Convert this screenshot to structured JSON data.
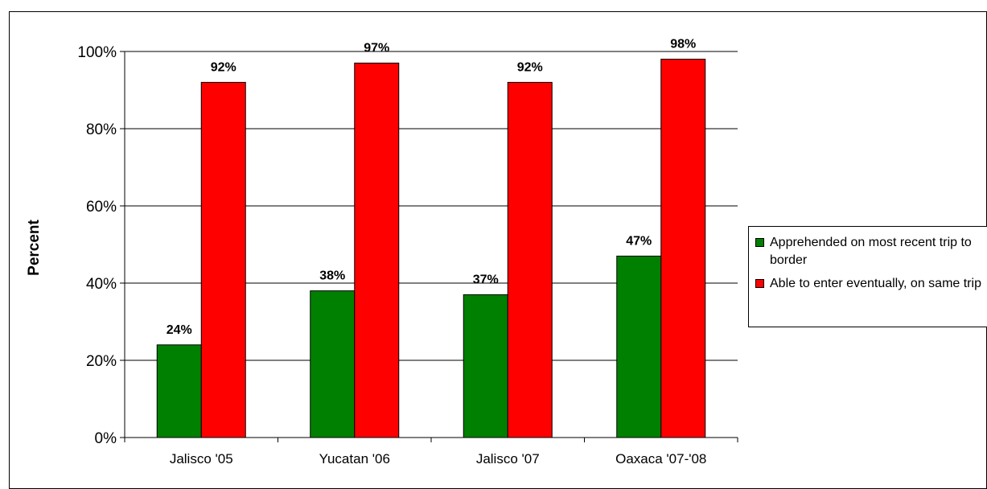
{
  "chart_data": {
    "type": "bar",
    "title": "",
    "xlabel": "",
    "ylabel": "Percent",
    "categories": [
      "Jalisco '05",
      "Yucatan '06",
      "Jalisco '07",
      "Oaxaca '07-'08"
    ],
    "series": [
      {
        "name": "Apprehended on most recent trip to border",
        "color": "#008000",
        "values": [
          24,
          38,
          37,
          47
        ],
        "labels": [
          "24%",
          "38%",
          "37%",
          "47%"
        ]
      },
      {
        "name": "Able to enter eventually, on same trip",
        "color": "#ff0000",
        "values": [
          92,
          97,
          92,
          98
        ],
        "labels": [
          "92%",
          "97%",
          "92%",
          "98%"
        ]
      }
    ],
    "ylim": [
      0,
      100
    ],
    "yticks": [
      0,
      20,
      40,
      60,
      80,
      100
    ],
    "ytick_labels": [
      "0%",
      "20%",
      "40%",
      "60%",
      "80%",
      "100%"
    ],
    "grid": true,
    "legend_position": "right"
  }
}
